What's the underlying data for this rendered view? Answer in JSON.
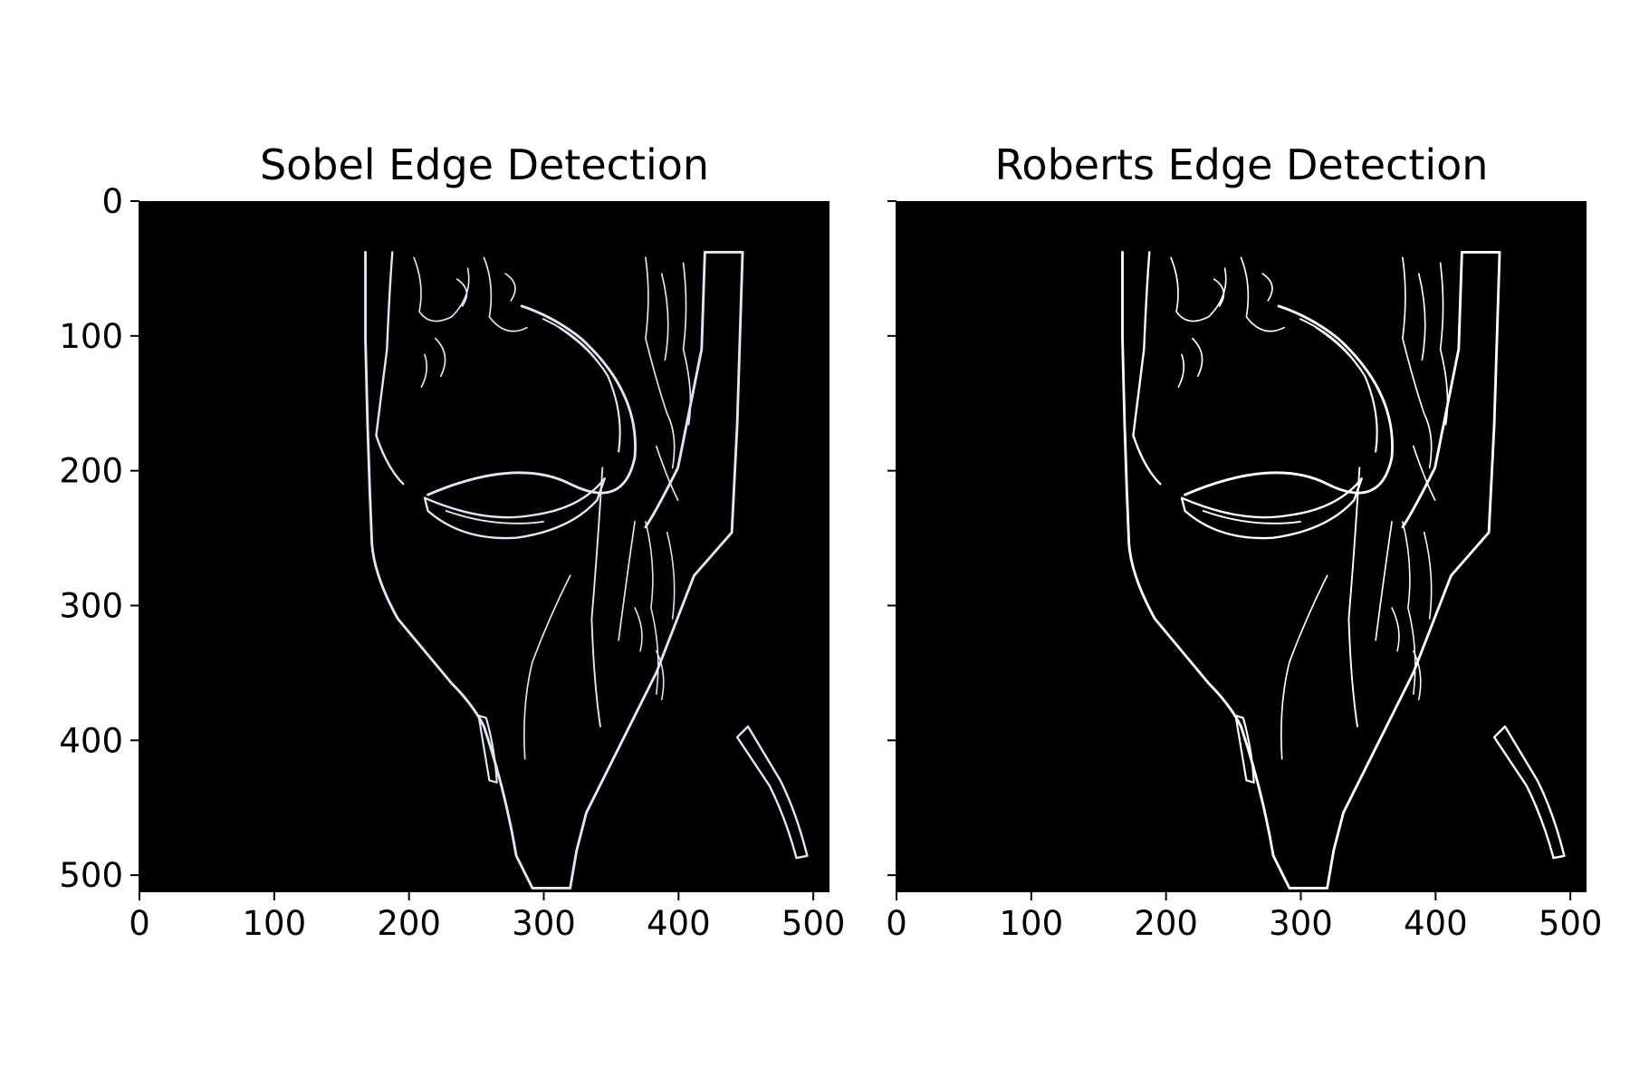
{
  "panels": [
    {
      "title": "Sobel Edge Detection",
      "image": "edge-detected knee MRI (sagittal), white edge lines on black background",
      "x_ticks": [
        "0",
        "100",
        "200",
        "300",
        "400",
        "500"
      ],
      "y_ticks": [
        "0",
        "100",
        "200",
        "300",
        "400",
        "500"
      ],
      "show_y_tick_labels": true,
      "edge_color": "#dfe8f5"
    },
    {
      "title": "Roberts Edge Detection",
      "image": "edge-detected knee MRI (sagittal), white edge lines on black background",
      "x_ticks": [
        "0",
        "100",
        "200",
        "300",
        "400",
        "500"
      ],
      "y_ticks": [
        "0",
        "100",
        "200",
        "300",
        "400",
        "500"
      ],
      "show_y_tick_labels": false,
      "edge_color": "#ffffff"
    }
  ],
  "x_tick_values": [
    0,
    100,
    200,
    300,
    400,
    500
  ],
  "y_tick_values": [
    0,
    100,
    200,
    300,
    400,
    500
  ],
  "image_extent": [
    0,
    512
  ],
  "background_color": "#000000"
}
